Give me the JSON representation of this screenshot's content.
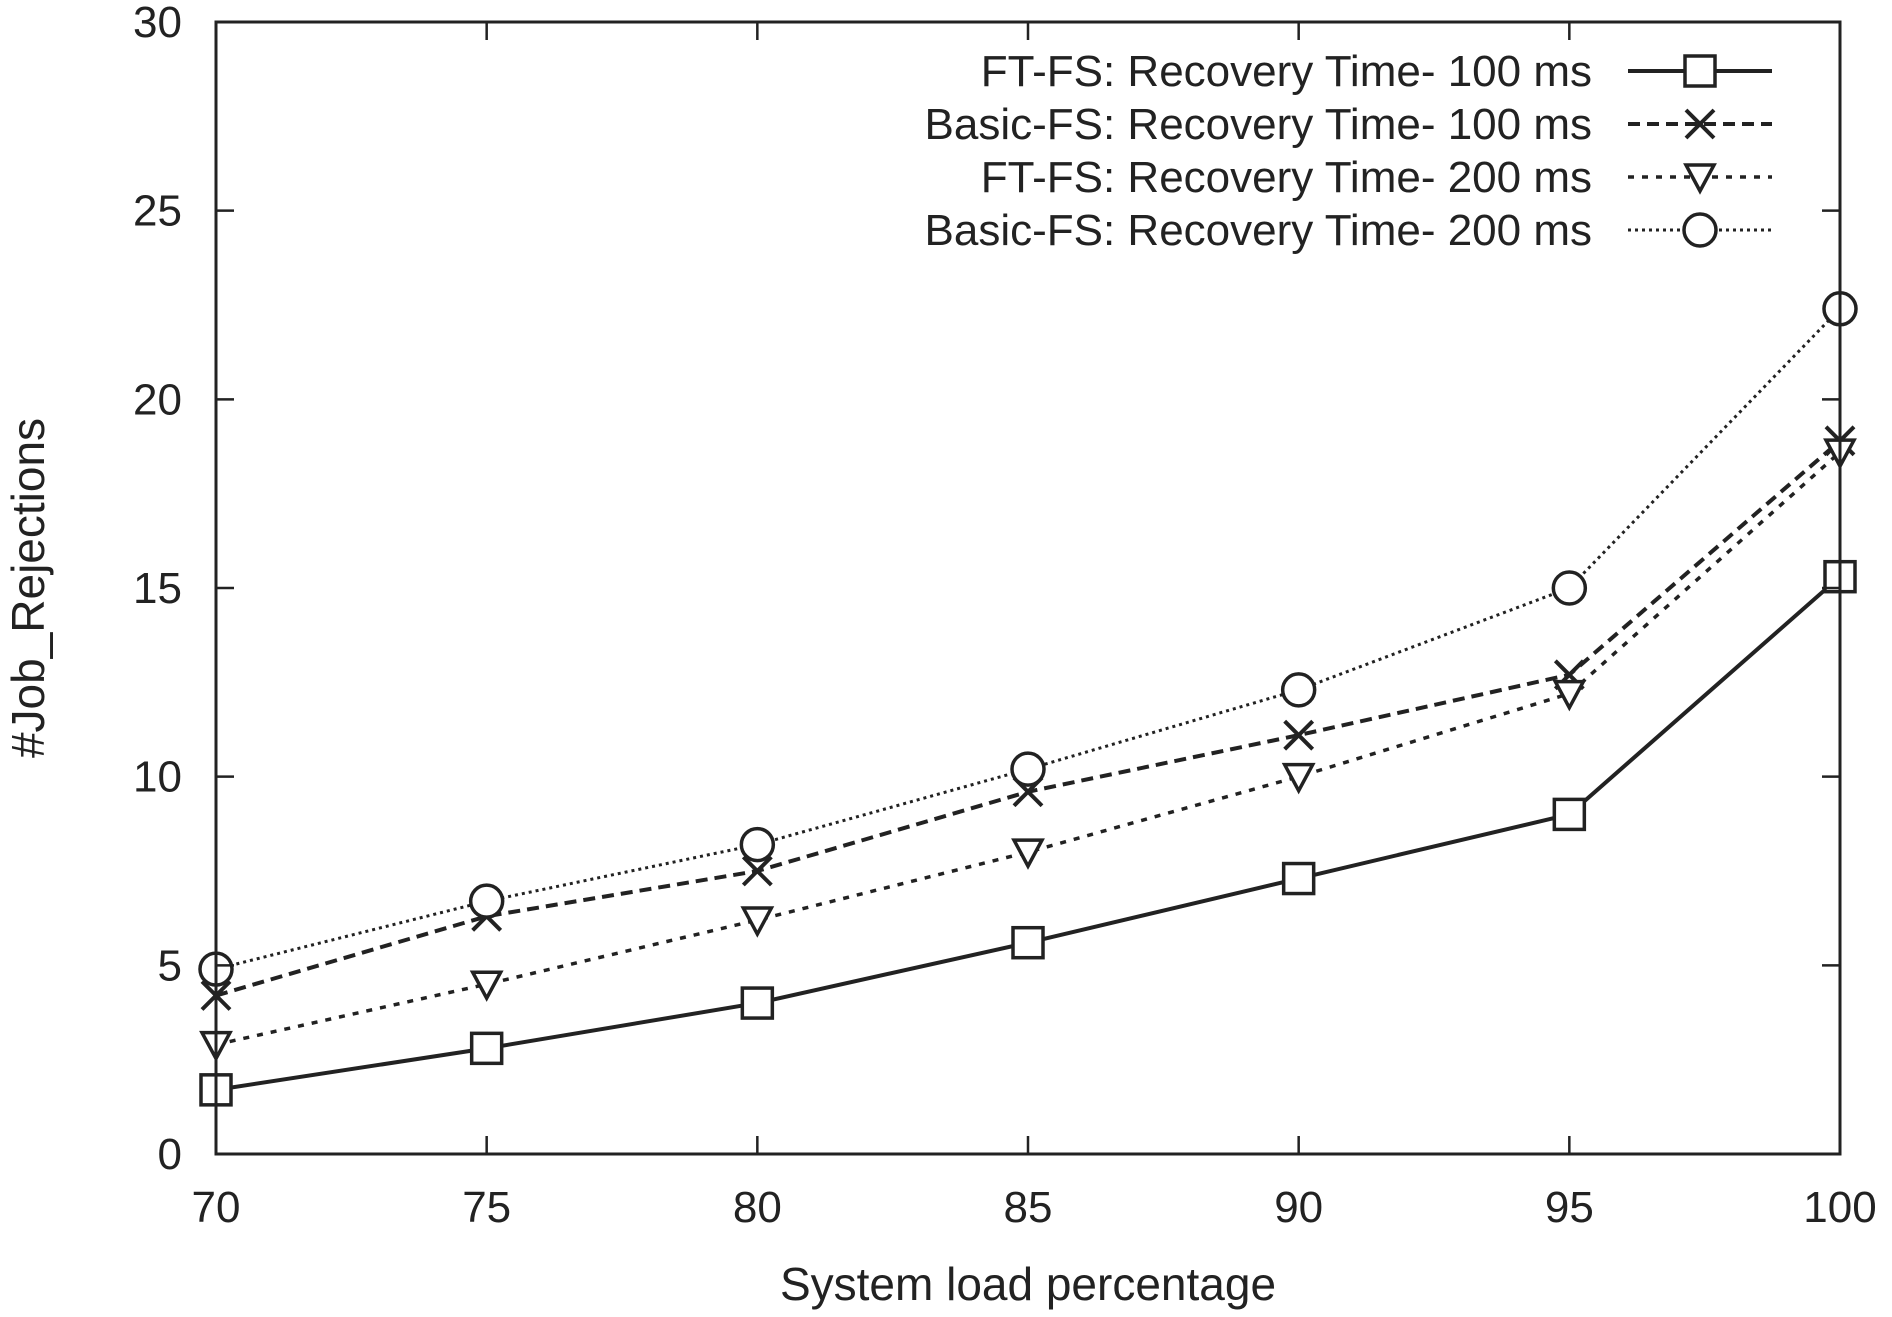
{
  "chart_data": {
    "type": "line",
    "title": "",
    "xlabel": "System load percentage",
    "ylabel": "#Job_Rejections",
    "x": [
      70,
      75,
      80,
      85,
      90,
      95,
      100
    ],
    "xlim": [
      70,
      100
    ],
    "ylim": [
      0,
      30
    ],
    "xticks": [
      "70",
      "75",
      "80",
      "85",
      "90",
      "95",
      "100"
    ],
    "yticks": [
      "0",
      "5",
      "10",
      "15",
      "20",
      "25",
      "30"
    ],
    "grid": false,
    "legend_position": "top-right",
    "series": [
      {
        "name": "FT-FS: Recovery Time- 100 ms",
        "values": [
          1.7,
          2.8,
          4.0,
          5.6,
          7.3,
          9.0,
          15.3
        ],
        "marker": "square",
        "line": "solid"
      },
      {
        "name": "Basic-FS: Recovery Time- 100 ms",
        "values": [
          4.2,
          6.3,
          7.5,
          9.6,
          11.1,
          12.7,
          18.9
        ],
        "marker": "x",
        "line": "dashed"
      },
      {
        "name": "FT-FS: Recovery Time- 200 ms",
        "values": [
          2.9,
          4.5,
          6.2,
          8.0,
          10.0,
          12.2,
          18.6
        ],
        "marker": "triangle-down",
        "line": "dotted"
      },
      {
        "name": "Basic-FS: Recovery Time- 200 ms",
        "values": [
          4.9,
          6.7,
          8.2,
          10.2,
          12.3,
          15.0,
          22.4
        ],
        "marker": "circle",
        "line": "fine-dotted"
      }
    ],
    "colors": {
      "ink": "#222222",
      "background": "#ffffff"
    }
  }
}
